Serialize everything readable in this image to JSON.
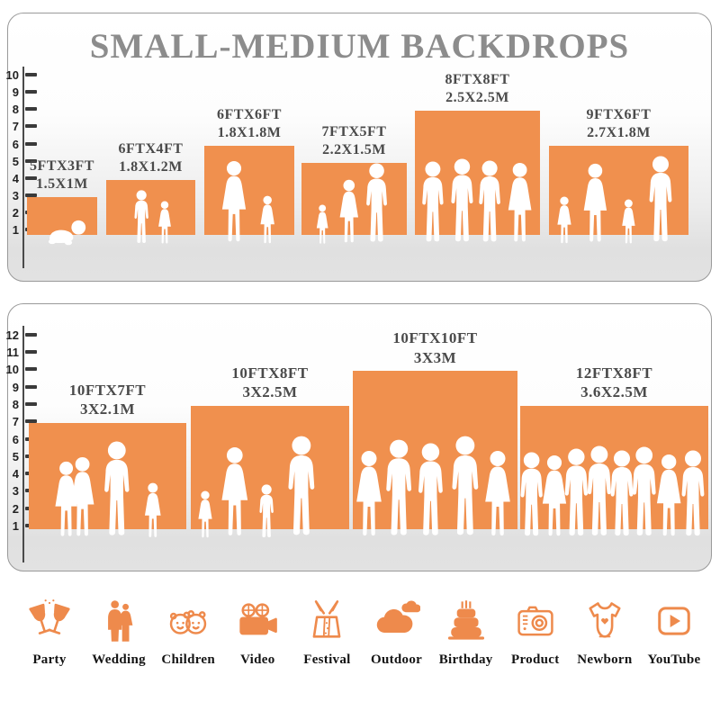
{
  "title": "SMALL-MEDIUM BACKDROPS",
  "colors": {
    "bar": "#F0904E",
    "title": "#8C8C8C",
    "bar_label": "#4A4A4A",
    "axis": "#3A3A3A",
    "icon": "#EE8A4C",
    "silhouette": "#FFFFFF"
  },
  "chart_data": [
    {
      "type": "bar",
      "title": "SMALL-MEDIUM BACKDROPS",
      "categories": [
        "5FTX3FT",
        "6FTX4FT",
        "6FTX6FT",
        "7FTX5FT",
        "8FTX8FT",
        "9FTX6FT"
      ],
      "metric_labels": [
        "1.5X1M",
        "1.8X1.2M",
        "1.8X1.8M",
        "2.2X1.5M",
        "2.5X2.5M",
        "2.7X1.8M"
      ],
      "values": [
        3,
        4,
        6,
        5,
        8,
        6
      ],
      "bar_widths_ft": [
        5,
        6,
        6,
        7,
        8,
        9
      ],
      "ylim": [
        0,
        10
      ],
      "yticks": [
        1,
        2,
        3,
        4,
        5,
        6,
        7,
        8,
        9,
        10
      ],
      "grid": false,
      "legend": false,
      "xlabel": "",
      "ylabel": ""
    },
    {
      "type": "bar",
      "title": "",
      "categories": [
        "10FTX7FT",
        "10FTX8FT",
        "10FTX10FT",
        "12FTX8FT"
      ],
      "metric_labels": [
        "3X2.1M",
        "3X2.5M",
        "3X3M",
        "3.6X2.5M"
      ],
      "values": [
        7,
        8,
        10,
        8
      ],
      "bar_widths_ft": [
        10,
        10,
        10,
        12
      ],
      "ylim": [
        0,
        12
      ],
      "yticks": [
        1,
        2,
        3,
        4,
        5,
        6,
        7,
        8,
        9,
        10,
        11,
        12
      ],
      "grid": false,
      "legend": false,
      "xlabel": "",
      "ylabel": ""
    }
  ],
  "icon_legend": [
    {
      "icon": "party-icon",
      "label": "Party"
    },
    {
      "icon": "wedding-icon",
      "label": "Wedding"
    },
    {
      "icon": "children-icon",
      "label": "Children"
    },
    {
      "icon": "video-icon",
      "label": "Video"
    },
    {
      "icon": "festival-icon",
      "label": "Festival"
    },
    {
      "icon": "outdoor-icon",
      "label": "Outdoor"
    },
    {
      "icon": "birthday-icon",
      "label": "Birthday"
    },
    {
      "icon": "product-icon",
      "label": "Product"
    },
    {
      "icon": "newborn-icon",
      "label": "Newborn"
    },
    {
      "icon": "youtube-icon",
      "label": "YouTube"
    }
  ]
}
